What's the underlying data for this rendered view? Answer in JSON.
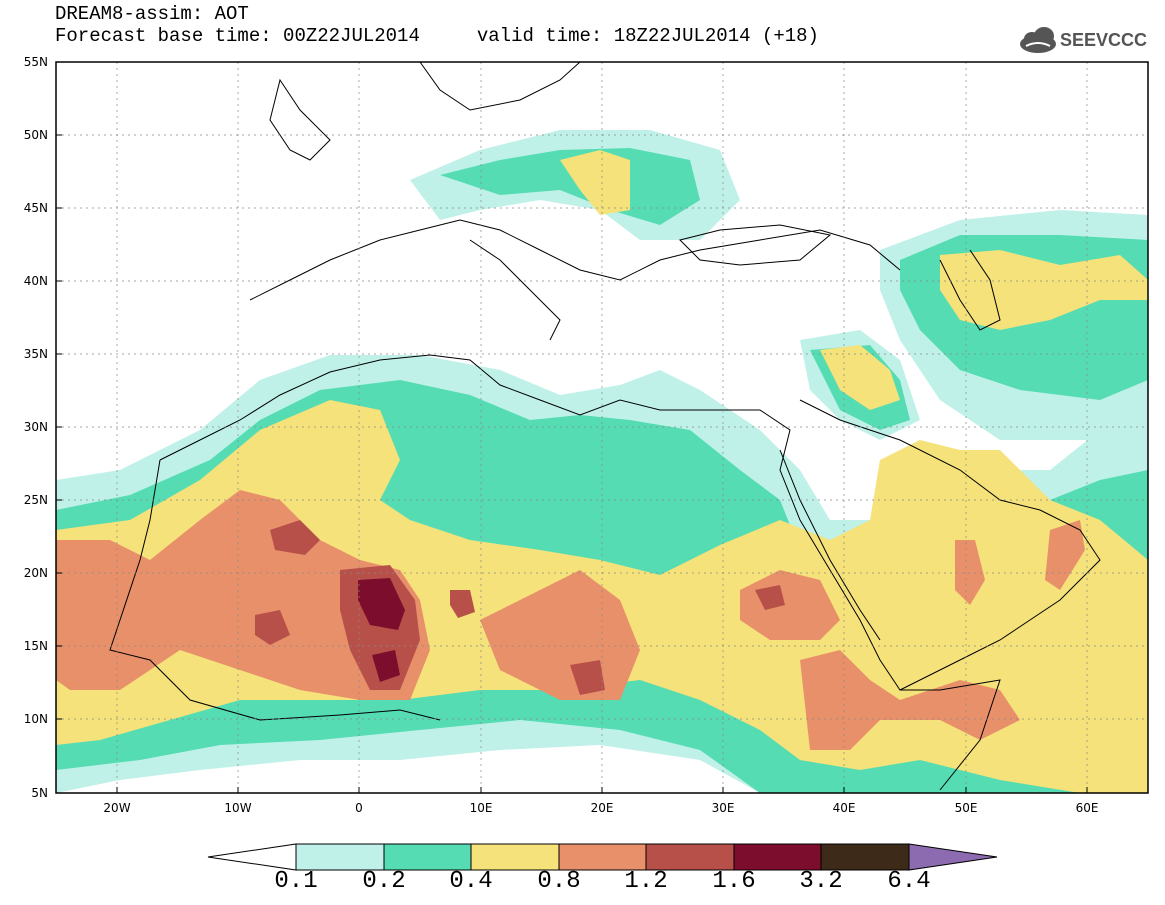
{
  "header": {
    "title_line1": "DREAM8-assim: AOT",
    "title_line2": "Forecast base time: 00Z22JUL2014     valid time: 18Z22JUL2014 (+18)",
    "logo_text": "SEEVCCC",
    "logo_icon": "cloud-icon"
  },
  "map": {
    "variable": "AOT",
    "lon_range": [
      -25,
      65
    ],
    "lat_range": [
      5,
      55
    ],
    "lat_ticks": [
      "55N",
      "50N",
      "45N",
      "40N",
      "35N",
      "30N",
      "25N",
      "20N",
      "15N",
      "10N",
      "5N"
    ],
    "lon_ticks": [
      "20W",
      "10W",
      "0",
      "10E",
      "20E",
      "30E",
      "40E",
      "50E",
      "60E"
    ],
    "grid": "dotted"
  },
  "colorbar": {
    "labels": [
      "0.1",
      "0.2",
      "0.4",
      "0.8",
      "1.2",
      "1.6",
      "3.2",
      "6.4"
    ],
    "colors": [
      "#ffffff",
      "#bff1e8",
      "#55dcb3",
      "#f5e27a",
      "#e8906a",
      "#b8504a",
      "#7c0d2c",
      "#3d2a18",
      "#8c6bb0"
    ]
  }
}
